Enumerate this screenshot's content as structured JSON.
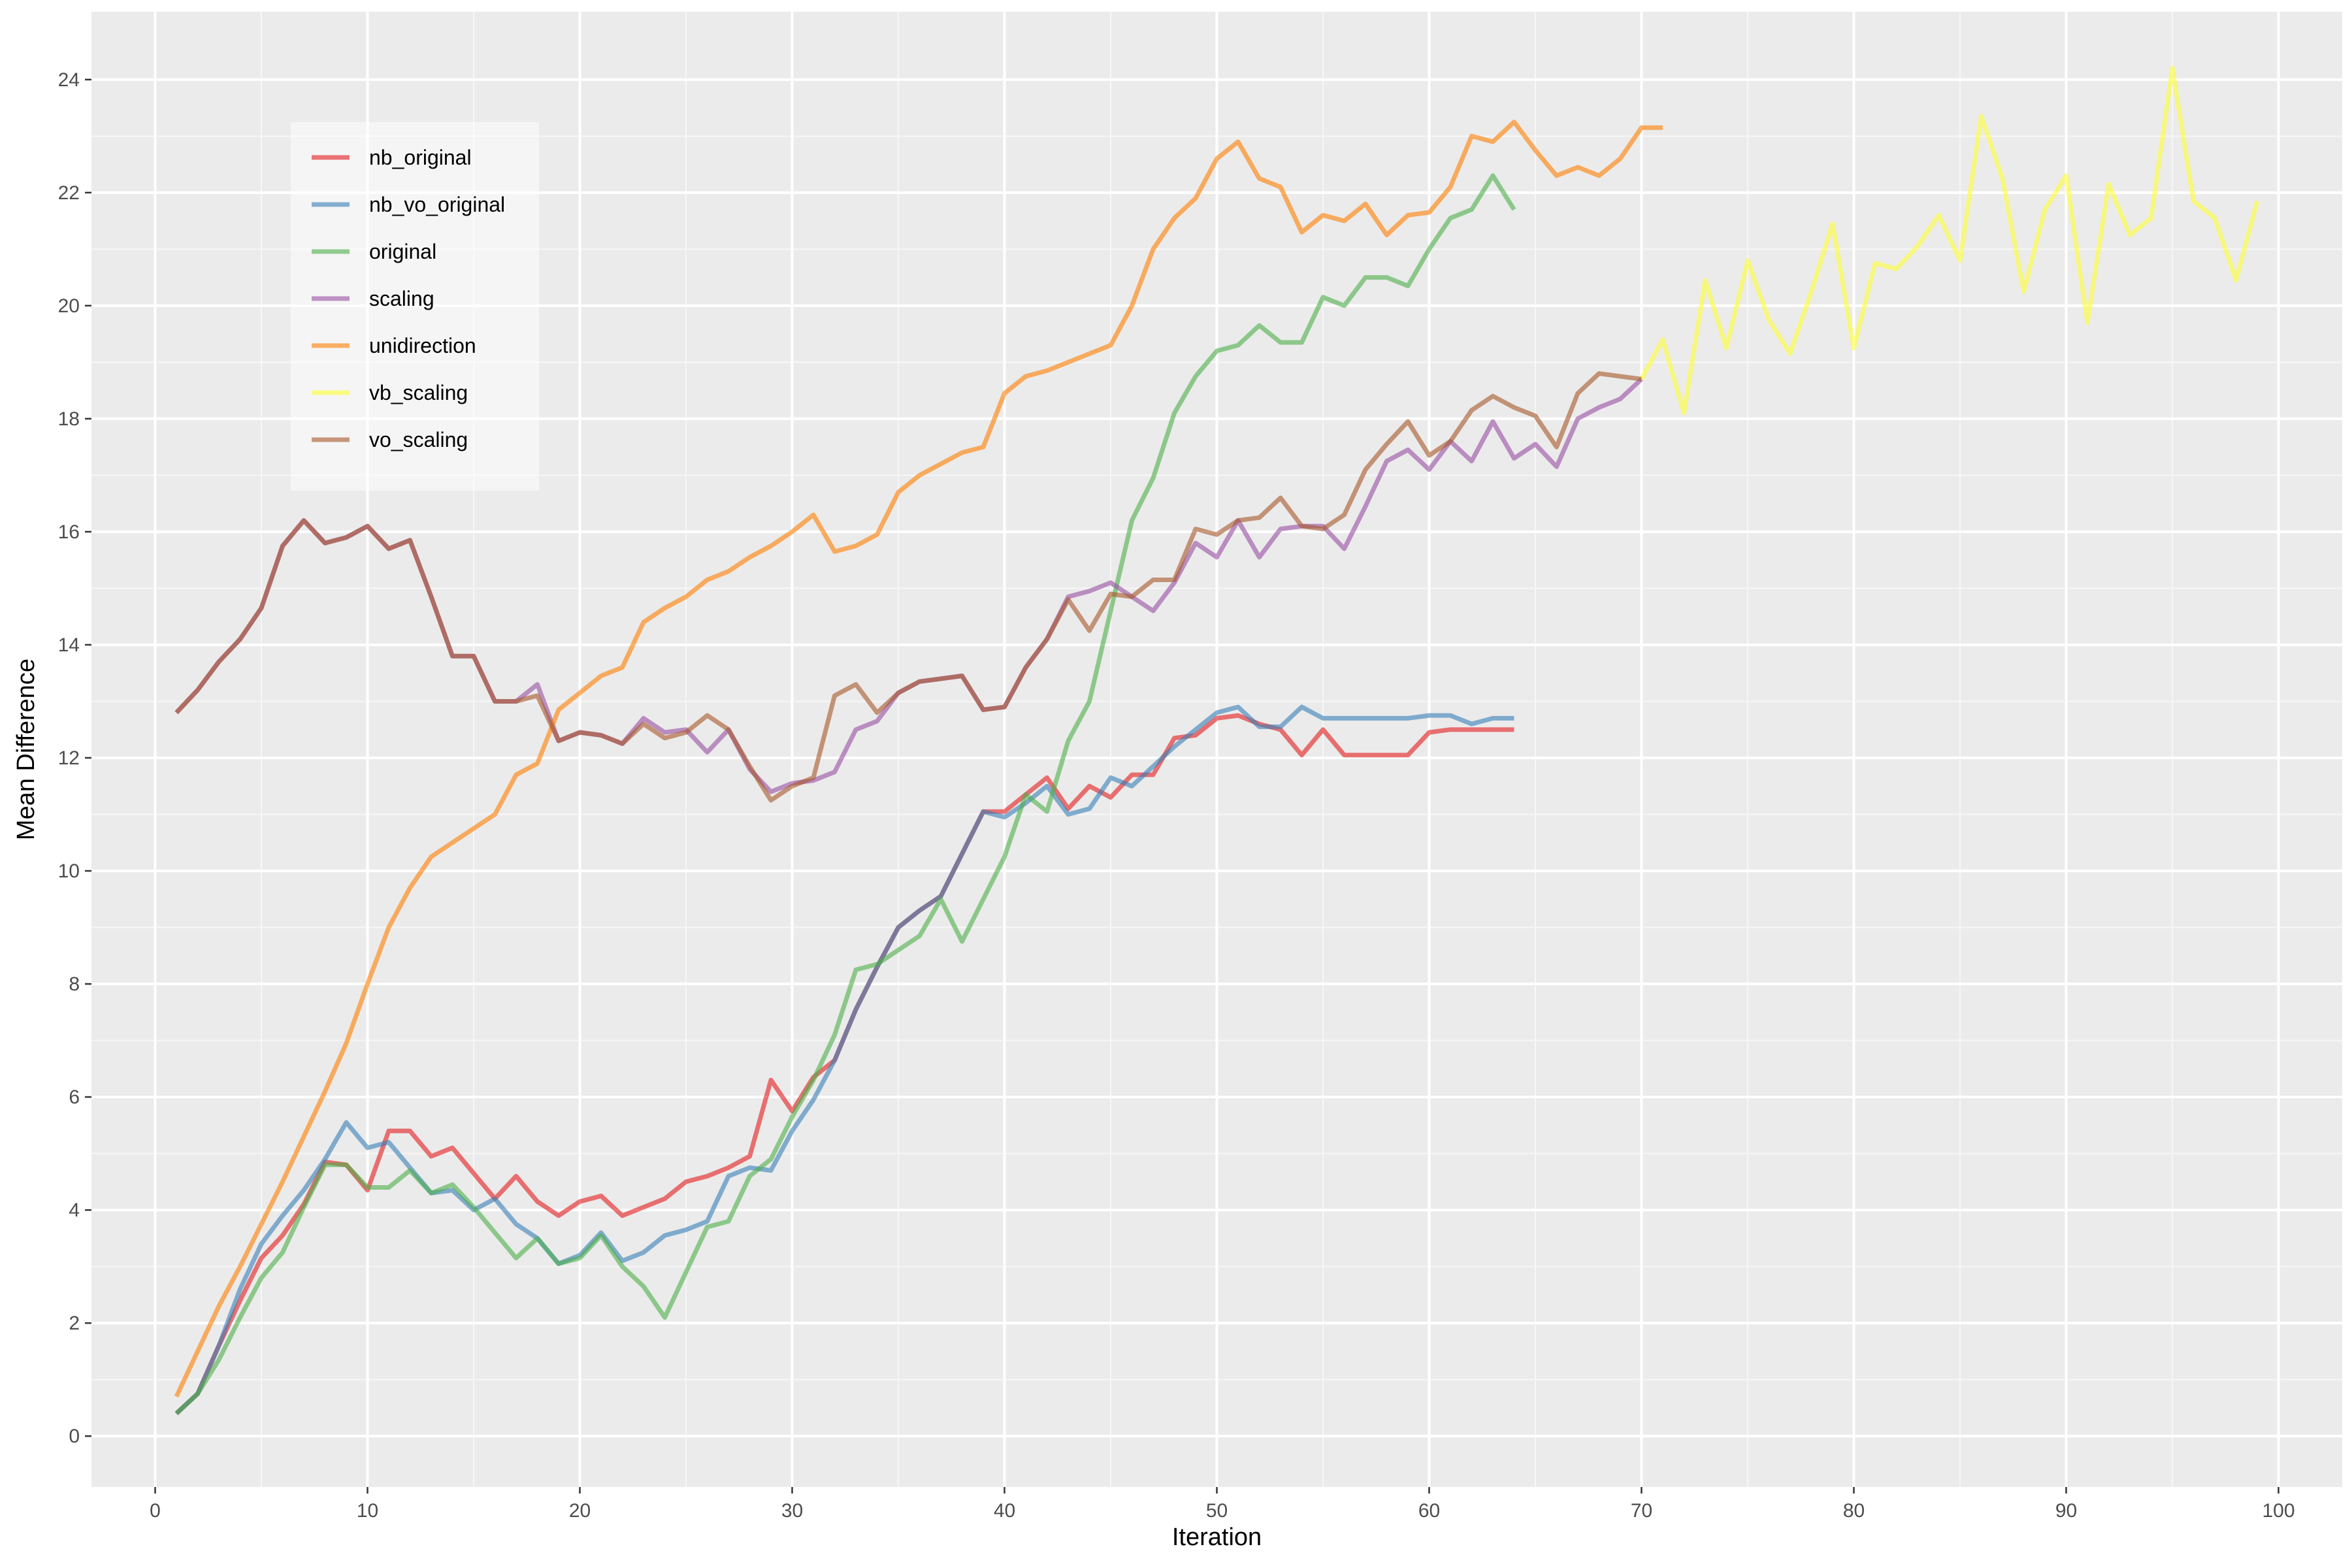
{
  "chart_data": {
    "type": "line",
    "title": "",
    "xlabel": "Iteration",
    "ylabel": "Mean Difference",
    "xlim": [
      -3,
      103
    ],
    "ylim": [
      -0.9,
      25.2
    ],
    "xticks": [
      0,
      10,
      20,
      30,
      40,
      50,
      60,
      70,
      80,
      90,
      100
    ],
    "yticks": [
      0,
      2,
      4,
      6,
      8,
      10,
      12,
      14,
      16,
      18,
      20,
      22,
      24
    ],
    "grid": true,
    "legend_position": "top-left",
    "series": [
      {
        "name": "nb_original",
        "color": "#E41A1C",
        "x": [
          1,
          2,
          3,
          4,
          5,
          6,
          7,
          8,
          9,
          10,
          11,
          12,
          13,
          14,
          15,
          16,
          17,
          18,
          19,
          20,
          21,
          22,
          23,
          24,
          25,
          26,
          27,
          28,
          29,
          30,
          31,
          32,
          33,
          34,
          35,
          36,
          37,
          38,
          39,
          40,
          41,
          42,
          43,
          44,
          45,
          46,
          47,
          48,
          49,
          50,
          51,
          52,
          53,
          54,
          55,
          56,
          57,
          58,
          59,
          60,
          61,
          62,
          63,
          64
        ],
        "y": [
          0.4,
          0.75,
          1.6,
          2.4,
          3.15,
          3.55,
          4.1,
          4.85,
          4.8,
          4.35,
          5.4,
          5.4,
          4.95,
          5.1,
          4.65,
          4.2,
          4.6,
          4.15,
          3.9,
          4.15,
          4.25,
          3.9,
          4.05,
          4.2,
          4.5,
          4.6,
          4.75,
          4.95,
          6.3,
          5.75,
          6.35,
          6.65,
          7.55,
          8.3,
          9.0,
          9.3,
          9.55,
          10.3,
          11.05,
          11.05,
          11.35,
          11.65,
          11.1,
          11.5,
          11.3,
          11.7,
          11.7,
          12.35,
          12.4,
          12.7,
          12.75,
          12.6,
          12.5,
          12.05,
          12.5,
          12.05,
          12.05,
          12.05,
          12.05,
          12.45,
          12.5,
          12.5,
          12.5,
          12.5
        ]
      },
      {
        "name": "nb_vo_original",
        "color": "#377EB8",
        "x": [
          1,
          2,
          3,
          4,
          5,
          6,
          7,
          8,
          9,
          10,
          11,
          12,
          13,
          14,
          15,
          16,
          17,
          18,
          19,
          20,
          21,
          22,
          23,
          24,
          25,
          26,
          27,
          28,
          29,
          30,
          31,
          32,
          33,
          34,
          35,
          36,
          37,
          38,
          39,
          40,
          41,
          42,
          43,
          44,
          45,
          46,
          47,
          48,
          49,
          50,
          51,
          52,
          53,
          54,
          55,
          56,
          57,
          58,
          59,
          60,
          61,
          62,
          63,
          64
        ],
        "y": [
          0.4,
          0.75,
          1.6,
          2.6,
          3.4,
          3.9,
          4.35,
          4.9,
          5.55,
          5.1,
          5.2,
          4.75,
          4.3,
          4.35,
          4.0,
          4.2,
          3.75,
          3.5,
          3.05,
          3.2,
          3.6,
          3.1,
          3.25,
          3.55,
          3.65,
          3.8,
          4.6,
          4.75,
          4.7,
          5.4,
          5.95,
          6.65,
          7.55,
          8.3,
          9.0,
          9.3,
          9.55,
          10.3,
          11.05,
          10.95,
          11.2,
          11.5,
          11.0,
          11.1,
          11.65,
          11.5,
          11.85,
          12.2,
          12.5,
          12.8,
          12.9,
          12.55,
          12.55,
          12.9,
          12.7,
          12.7,
          12.7,
          12.7,
          12.7,
          12.75,
          12.75,
          12.6,
          12.7,
          12.7
        ]
      },
      {
        "name": "original",
        "color": "#4DAF4A",
        "x": [
          1,
          2,
          3,
          4,
          5,
          6,
          7,
          8,
          9,
          10,
          11,
          12,
          13,
          14,
          15,
          16,
          17,
          18,
          19,
          20,
          21,
          22,
          23,
          24,
          25,
          26,
          27,
          28,
          29,
          30,
          31,
          32,
          33,
          34,
          35,
          36,
          37,
          38,
          39,
          40,
          41,
          42,
          43,
          44,
          45,
          46,
          47,
          48,
          49,
          50,
          51,
          52,
          53,
          54,
          55,
          56,
          57,
          58,
          59,
          60,
          61,
          62,
          63,
          64
        ],
        "y": [
          0.4,
          0.75,
          1.35,
          2.1,
          2.8,
          3.25,
          4.05,
          4.8,
          4.8,
          4.4,
          4.4,
          4.7,
          4.3,
          4.45,
          4.05,
          3.6,
          3.15,
          3.5,
          3.05,
          3.15,
          3.55,
          3.0,
          2.65,
          2.1,
          2.9,
          3.7,
          3.8,
          4.6,
          4.9,
          5.65,
          6.3,
          7.1,
          8.25,
          8.35,
          8.6,
          8.85,
          9.5,
          8.75,
          9.5,
          10.25,
          11.35,
          11.05,
          12.3,
          13.0,
          14.6,
          16.2,
          16.95,
          18.1,
          18.75,
          19.2,
          19.3,
          19.65,
          19.35,
          19.35,
          20.15,
          20.0,
          20.5,
          20.5,
          20.35,
          21.0,
          21.55,
          21.7,
          22.3,
          21.7
        ]
      },
      {
        "name": "scaling",
        "color": "#984EA3",
        "x": [
          1,
          2,
          3,
          4,
          5,
          6,
          7,
          8,
          9,
          10,
          11,
          12,
          13,
          14,
          15,
          16,
          17,
          18,
          19,
          20,
          21,
          22,
          23,
          24,
          25,
          26,
          27,
          28,
          29,
          30,
          31,
          32,
          33,
          34,
          35,
          36,
          37,
          38,
          39,
          40,
          41,
          42,
          43,
          44,
          45,
          46,
          47,
          48,
          49,
          50,
          51,
          52,
          53,
          54,
          55,
          56,
          57,
          58,
          59,
          60,
          61,
          62,
          63,
          64,
          65,
          66,
          67,
          68,
          69,
          70
        ],
        "y": [
          12.8,
          13.2,
          13.7,
          14.1,
          14.65,
          15.75,
          16.2,
          15.8,
          15.9,
          16.1,
          15.7,
          15.85,
          14.85,
          13.8,
          13.8,
          13.0,
          13.0,
          13.3,
          12.3,
          12.45,
          12.4,
          12.25,
          12.7,
          12.45,
          12.5,
          12.1,
          12.5,
          11.8,
          11.4,
          11.55,
          11.6,
          11.75,
          12.5,
          12.65,
          13.15,
          13.35,
          13.4,
          13.45,
          12.85,
          12.9,
          13.6,
          14.1,
          14.85,
          14.95,
          15.1,
          14.85,
          14.6,
          15.1,
          15.8,
          15.55,
          16.2,
          15.55,
          16.05,
          16.1,
          16.1,
          15.7,
          16.45,
          17.25,
          17.45,
          17.1,
          17.6,
          17.25,
          17.95,
          17.3,
          17.55,
          17.15,
          18.0,
          18.2,
          18.35,
          18.7
        ]
      },
      {
        "name": "unidirection",
        "color": "#FF7F00",
        "x": [
          1,
          2,
          3,
          4,
          5,
          6,
          7,
          8,
          9,
          10,
          11,
          12,
          13,
          14,
          15,
          16,
          17,
          18,
          19,
          20,
          21,
          22,
          23,
          24,
          25,
          26,
          27,
          28,
          29,
          30,
          31,
          32,
          33,
          34,
          35,
          36,
          37,
          38,
          39,
          40,
          41,
          42,
          43,
          44,
          45,
          46,
          47,
          48,
          49,
          50,
          51,
          52,
          53,
          54,
          55,
          56,
          57,
          58,
          59,
          60,
          61,
          62,
          63,
          64,
          65,
          66,
          67,
          68,
          69,
          70,
          71
        ],
        "y": [
          0.7,
          1.5,
          2.3,
          3.0,
          3.75,
          4.5,
          5.3,
          6.1,
          6.95,
          8.0,
          9.0,
          9.7,
          10.25,
          10.5,
          10.75,
          11.0,
          11.7,
          11.9,
          12.85,
          13.15,
          13.45,
          13.6,
          14.4,
          14.65,
          14.85,
          15.15,
          15.3,
          15.55,
          15.75,
          16.0,
          16.3,
          15.65,
          15.75,
          15.95,
          16.7,
          17.0,
          17.2,
          17.4,
          17.5,
          18.45,
          18.75,
          18.85,
          19.0,
          19.15,
          19.3,
          20.0,
          21.0,
          21.55,
          21.9,
          22.6,
          22.9,
          22.25,
          22.1,
          21.3,
          21.6,
          21.5,
          21.8,
          21.25,
          21.6,
          21.65,
          22.1,
          23.0,
          22.9,
          23.25,
          22.75,
          22.3,
          22.45,
          22.3,
          22.6,
          23.15,
          23.15
        ]
      },
      {
        "name": "vb_scaling",
        "color": "#FFFF33",
        "x": [
          70,
          71,
          72,
          73,
          74,
          75,
          76,
          77,
          78,
          79,
          80,
          81,
          82,
          83,
          84,
          85,
          86,
          87,
          88,
          89,
          90,
          91,
          92,
          93,
          94,
          95,
          96,
          97,
          98,
          99
        ],
        "y": [
          18.7,
          19.4,
          18.1,
          20.45,
          19.25,
          20.8,
          19.75,
          19.15,
          20.25,
          21.45,
          19.25,
          20.75,
          20.65,
          21.05,
          21.6,
          20.8,
          23.35,
          22.25,
          20.25,
          21.7,
          22.3,
          19.7,
          22.15,
          21.25,
          21.55,
          24.2,
          21.85,
          21.55,
          20.45,
          21.85
        ]
      },
      {
        "name": "vo_scaling",
        "color": "#A65628",
        "x": [
          1,
          2,
          3,
          4,
          5,
          6,
          7,
          8,
          9,
          10,
          11,
          12,
          13,
          14,
          15,
          16,
          17,
          18,
          19,
          20,
          21,
          22,
          23,
          24,
          25,
          26,
          27,
          28,
          29,
          30,
          31,
          32,
          33,
          34,
          35,
          36,
          37,
          38,
          39,
          40,
          41,
          42,
          43,
          44,
          45,
          46,
          47,
          48,
          49,
          50,
          51,
          52,
          53,
          54,
          55,
          56,
          57,
          58,
          59,
          60,
          61,
          62,
          63,
          64,
          65,
          66,
          67,
          68,
          69,
          70
        ],
        "y": [
          12.8,
          13.2,
          13.7,
          14.1,
          14.65,
          15.75,
          16.2,
          15.8,
          15.9,
          16.1,
          15.7,
          15.85,
          14.85,
          13.8,
          13.8,
          13.0,
          13.0,
          13.1,
          12.3,
          12.45,
          12.4,
          12.25,
          12.6,
          12.35,
          12.45,
          12.75,
          12.5,
          11.85,
          11.25,
          11.5,
          11.65,
          13.1,
          13.3,
          12.8,
          13.15,
          13.35,
          13.4,
          13.45,
          12.85,
          12.9,
          13.6,
          14.1,
          14.8,
          14.25,
          14.9,
          14.85,
          15.15,
          15.15,
          16.05,
          15.95,
          16.2,
          16.25,
          16.6,
          16.1,
          16.05,
          16.3,
          17.1,
          17.55,
          17.95,
          17.35,
          17.6,
          18.15,
          18.4,
          18.2,
          18.05,
          17.5,
          18.45,
          18.8,
          18.75,
          18.7
        ]
      }
    ]
  }
}
